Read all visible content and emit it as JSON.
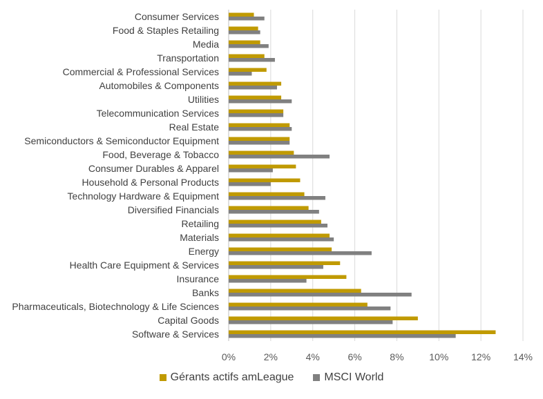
{
  "chart_data": {
    "type": "bar",
    "orientation": "horizontal",
    "categories": [
      "Consumer Services",
      "Food & Staples Retailing",
      "Media",
      "Transportation",
      "Commercial & Professional Services",
      "Automobiles & Components",
      "Utilities",
      "Telecommunication Services",
      "Real Estate",
      "Semiconductors & Semiconductor Equipment",
      "Food, Beverage & Tobacco",
      "Consumer Durables & Apparel",
      "Household & Personal Products",
      "Technology Hardware & Equipment",
      "Diversified Financials",
      "Retailing",
      "Materials",
      "Energy",
      "Health Care Equipment & Services",
      "Insurance",
      "Banks",
      "Pharmaceuticals, Biotechnology & Life Sciences",
      "Capital Goods",
      "Software & Services"
    ],
    "series": [
      {
        "name": "Gérants actifs amLeague",
        "color": "#c09a00",
        "values": [
          1.2,
          1.4,
          1.5,
          1.7,
          1.8,
          2.5,
          2.5,
          2.6,
          2.9,
          2.9,
          3.1,
          3.2,
          3.4,
          3.6,
          3.8,
          4.4,
          4.8,
          4.9,
          5.3,
          5.6,
          6.3,
          6.6,
          9.0,
          12.7
        ]
      },
      {
        "name": "MSCI World",
        "color": "#808080",
        "values": [
          1.7,
          1.5,
          1.9,
          2.2,
          1.1,
          2.3,
          3.0,
          2.6,
          3.0,
          2.9,
          4.8,
          2.1,
          2.0,
          4.6,
          4.3,
          4.7,
          5.0,
          6.8,
          4.5,
          3.7,
          8.7,
          7.7,
          7.8,
          10.8
        ]
      }
    ],
    "xlim": [
      0,
      14
    ],
    "xticks": [
      "0%",
      "2%",
      "4%",
      "6%",
      "8%",
      "10%",
      "12%",
      "14%"
    ],
    "grid": true,
    "legend": "bottom",
    "title": "",
    "xlabel": "",
    "ylabel": ""
  }
}
